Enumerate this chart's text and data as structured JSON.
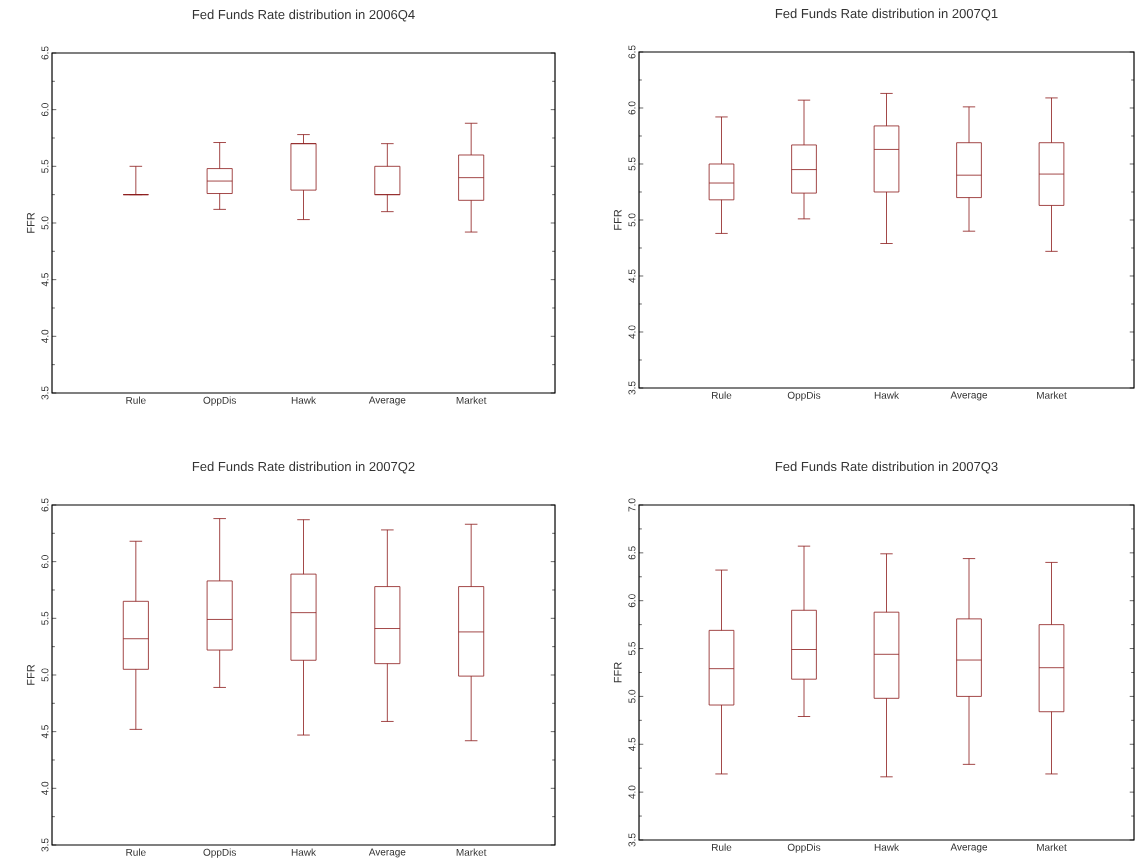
{
  "chart_data": [
    {
      "type": "box",
      "title": "Fed Funds Rate distribution in 2006Q4",
      "ylabel": "FFR",
      "categories": [
        "Rule",
        "OppDis",
        "Hawk",
        "Average",
        "Market"
      ],
      "color": "#8b1a1a",
      "ylim": [
        3.5,
        6.5
      ],
      "yticks": [
        3.5,
        {
          "value": 4,
          "label": "4.0"
        },
        4.5,
        {
          "value": 5,
          "label": "5.0"
        },
        5.5,
        {
          "value": 6,
          "label": "6.0"
        },
        6.5
      ],
      "boxes": [
        {
          "low": 5.25,
          "q1": 5.25,
          "median": 5.25,
          "q3": 5.25,
          "high": 5.5
        },
        {
          "low": 5.12,
          "q1": 5.26,
          "median": 5.37,
          "q3": 5.48,
          "high": 5.71
        },
        {
          "low": 5.03,
          "q1": 5.29,
          "median": 5.7,
          "q3": 5.7,
          "high": 5.78
        },
        {
          "low": 5.1,
          "q1": 5.25,
          "median": 5.25,
          "q3": 5.5,
          "high": 5.7
        },
        {
          "low": 4.92,
          "q1": 5.2,
          "median": 5.4,
          "q3": 5.6,
          "high": 5.88
        }
      ]
    },
    {
      "type": "box",
      "title": "Fed Funds Rate distribution in 2007Q1",
      "ylabel": "FFR",
      "categories": [
        "Rule",
        "OppDis",
        "Hawk",
        "Average",
        "Market"
      ],
      "color": "#8b1a1a",
      "ylim": [
        3.5,
        6.5
      ],
      "yticks": [
        3.5,
        {
          "value": 4,
          "label": "4.0"
        },
        4.5,
        {
          "value": 5,
          "label": "5.0"
        },
        5.5,
        {
          "value": 6,
          "label": "6.0"
        },
        6.5
      ],
      "boxes": [
        {
          "low": 4.88,
          "q1": 5.18,
          "median": 5.33,
          "q3": 5.5,
          "high": 5.92
        },
        {
          "low": 5.01,
          "q1": 5.24,
          "median": 5.45,
          "q3": 5.67,
          "high": 6.07
        },
        {
          "low": 4.79,
          "q1": 5.25,
          "median": 5.63,
          "q3": 5.84,
          "high": 6.13
        },
        {
          "low": 4.9,
          "q1": 5.2,
          "median": 5.4,
          "q3": 5.69,
          "high": 6.01
        },
        {
          "low": 4.72,
          "q1": 5.13,
          "median": 5.41,
          "q3": 5.69,
          "high": 6.09
        }
      ]
    },
    {
      "type": "box",
      "title": "Fed Funds Rate distribution in 2007Q2",
      "ylabel": "FFR",
      "categories": [
        "Rule",
        "OppDis",
        "Hawk",
        "Average",
        "Market"
      ],
      "color": "#8b1a1a",
      "ylim": [
        3.5,
        6.5
      ],
      "yticks": [
        3.5,
        {
          "value": 4,
          "label": "4.0"
        },
        4.5,
        {
          "value": 5,
          "label": "5.0"
        },
        5.5,
        {
          "value": 6,
          "label": "6.0"
        },
        6.5
      ],
      "boxes": [
        {
          "low": 4.52,
          "q1": 5.05,
          "median": 5.32,
          "q3": 5.65,
          "high": 6.18
        },
        {
          "low": 4.89,
          "q1": 5.22,
          "median": 5.49,
          "q3": 5.83,
          "high": 6.38
        },
        {
          "low": 4.47,
          "q1": 5.13,
          "median": 5.55,
          "q3": 5.89,
          "high": 6.37
        },
        {
          "low": 4.59,
          "q1": 5.1,
          "median": 5.41,
          "q3": 5.78,
          "high": 6.28
        },
        {
          "low": 4.42,
          "q1": 4.99,
          "median": 5.38,
          "q3": 5.78,
          "high": 6.33
        }
      ]
    },
    {
      "type": "box",
      "title": "Fed Funds Rate distribution in 2007Q3",
      "ylabel": "FFR",
      "categories": [
        "Rule",
        "OppDis",
        "Hawk",
        "Average",
        "Market"
      ],
      "color": "#8b1a1a",
      "ylim": [
        3.5,
        7.0
      ],
      "yticks": [
        3.5,
        {
          "value": 4,
          "label": "4.0"
        },
        4.5,
        {
          "value": 5,
          "label": "5.0"
        },
        5.5,
        {
          "value": 6,
          "label": "6.0"
        },
        6.5,
        {
          "value": 7,
          "label": "7.0"
        }
      ],
      "boxes": [
        {
          "low": 4.19,
          "q1": 4.91,
          "median": 5.29,
          "q3": 5.69,
          "high": 6.32
        },
        {
          "low": 4.79,
          "q1": 5.18,
          "median": 5.49,
          "q3": 5.9,
          "high": 6.57
        },
        {
          "low": 4.16,
          "q1": 4.98,
          "median": 5.44,
          "q3": 5.88,
          "high": 6.49
        },
        {
          "low": 4.29,
          "q1": 5.0,
          "median": 5.38,
          "q3": 5.81,
          "high": 6.44
        },
        {
          "low": 4.19,
          "q1": 4.84,
          "median": 5.3,
          "q3": 5.75,
          "high": 6.4
        }
      ]
    }
  ]
}
